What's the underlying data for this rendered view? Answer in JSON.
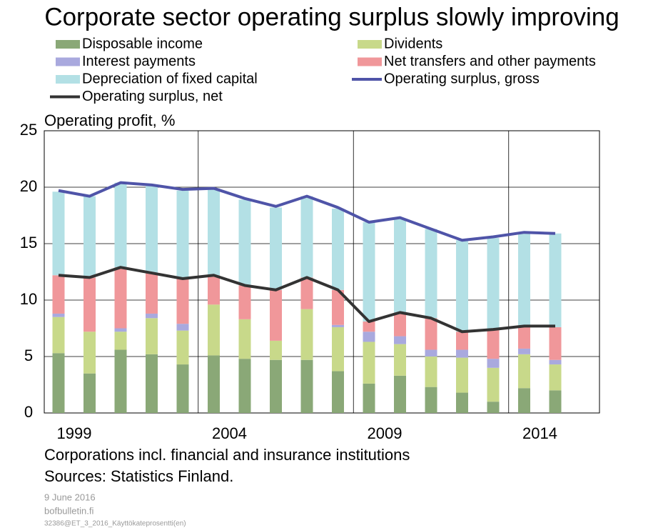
{
  "chart_data": {
    "type": "stacked_bar_line",
    "title": "Corporate sector operating surplus slowly improving",
    "y_label": "Operating profit, %",
    "categories": [
      "1999",
      null,
      null,
      null,
      null,
      "2004",
      null,
      null,
      null,
      null,
      "2009",
      null,
      null,
      null,
      null,
      "2014",
      null
    ],
    "ylim": [
      0,
      25
    ],
    "yticks": [
      0,
      5,
      10,
      15,
      20,
      25
    ],
    "grid": true,
    "series": [
      {
        "name": "Disposable income",
        "color": "#8aa877",
        "kind": "bar",
        "values": [
          5.3,
          3.5,
          5.6,
          5.2,
          4.3,
          5.1,
          4.8,
          4.7,
          4.7,
          3.7,
          2.6,
          3.3,
          2.3,
          1.8,
          1.0,
          2.2,
          2.0
        ]
      },
      {
        "name": "Dividents",
        "color": "#c8d98a",
        "kind": "bar",
        "values": [
          3.2,
          3.7,
          1.6,
          3.2,
          3.0,
          4.5,
          3.5,
          1.7,
          4.5,
          3.9,
          3.7,
          2.8,
          2.7,
          3.1,
          3.0,
          3.0,
          2.3
        ]
      },
      {
        "name": "Interest payments",
        "color": "#a9a9de",
        "kind": "bar",
        "values": [
          0.3,
          0.0,
          0.3,
          0.4,
          0.6,
          0.0,
          0.0,
          0.0,
          0.0,
          0.2,
          0.9,
          0.7,
          0.6,
          0.7,
          0.8,
          0.5,
          0.4
        ]
      },
      {
        "name": "Net transfers and other payments",
        "color": "#f0979a",
        "kind": "bar",
        "values": [
          3.4,
          4.8,
          5.4,
          3.6,
          4.0,
          2.6,
          3.0,
          4.5,
          2.8,
          3.1,
          0.9,
          2.1,
          2.8,
          1.6,
          2.6,
          2.0,
          2.9
        ]
      },
      {
        "name": "Depreciation of fixed capital",
        "color": "#b3e0e5",
        "kind": "bar",
        "values": [
          7.4,
          7.2,
          7.5,
          7.7,
          7.8,
          7.7,
          7.6,
          7.3,
          7.2,
          7.2,
          8.8,
          8.3,
          7.9,
          8.1,
          8.1,
          8.3,
          8.3
        ]
      },
      {
        "name": "Operating surplus, gross",
        "color": "#4f54a8",
        "kind": "line",
        "values": [
          19.7,
          19.2,
          20.4,
          20.2,
          19.8,
          19.9,
          19.0,
          18.3,
          19.2,
          18.2,
          16.9,
          17.3,
          16.3,
          15.3,
          15.6,
          16.0,
          15.9
        ]
      },
      {
        "name": "Operating surplus, net",
        "color": "#333333",
        "kind": "line",
        "values": [
          12.2,
          12.0,
          12.9,
          12.4,
          11.9,
          12.2,
          11.3,
          10.9,
          12.0,
          10.9,
          8.1,
          8.9,
          8.4,
          7.2,
          7.4,
          7.7,
          7.7
        ]
      }
    ],
    "notes": [
      "Corporations incl. financial and insurance institutions",
      "Sources: Statistics Finland."
    ],
    "footer": [
      "9 June 2016",
      "bofbulletin.fi",
      "32386@ET_3_2016_Käyttökateprosentti(en)"
    ]
  }
}
